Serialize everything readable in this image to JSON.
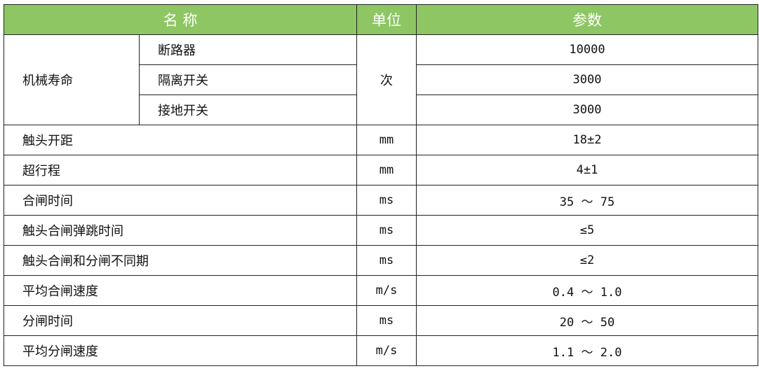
{
  "header": {
    "name": "名 称",
    "unit": "单位",
    "param": "参数"
  },
  "mechanical_life": {
    "label": "机械寿命",
    "unit": "次",
    "items": [
      {
        "name": "断路器",
        "value": "10000"
      },
      {
        "name": "隔离开关",
        "value": "3000"
      },
      {
        "name": "接地开关",
        "value": "3000"
      }
    ]
  },
  "rows": [
    {
      "name": "触头开距",
      "unit": "mm",
      "value": "18±2"
    },
    {
      "name": "超行程",
      "unit": "mm",
      "value": "4±1"
    },
    {
      "name": "合闸时间",
      "unit": "ms",
      "value": "35 ～ 75"
    },
    {
      "name": "触头合闸弹跳时间",
      "unit": "ms",
      "value": "≤5"
    },
    {
      "name": "触头合闸和分闸不同期",
      "unit": "ms",
      "value": "≤2"
    },
    {
      "name": "平均合闸速度",
      "unit": "m/s",
      "value": "0.4 ～ 1.0"
    },
    {
      "name": "分闸时间",
      "unit": "ms",
      "value": "20 ～ 50"
    },
    {
      "name": "平均分闸速度",
      "unit": "m/s",
      "value": "1.1 ～ 2.0"
    }
  ]
}
